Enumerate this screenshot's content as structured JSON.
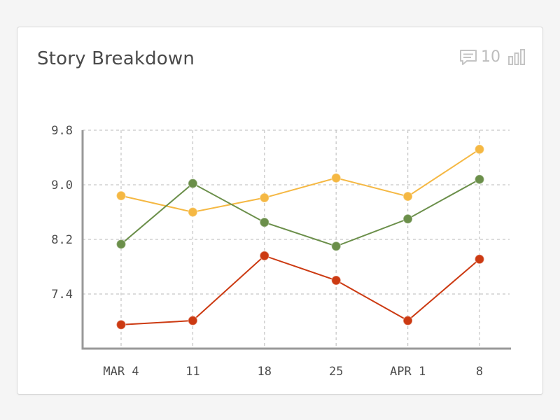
{
  "card": {
    "title": "Story Breakdown",
    "comment_icon": "comment-icon",
    "comment_count": "10",
    "chart_toggle_icon": "bar-chart-icon"
  },
  "colors": {
    "orange": "#f5b843",
    "green": "#6b8f4a",
    "red": "#cc3a12",
    "axis": "#999999",
    "grid": "#c8c8c8"
  },
  "chart_data": {
    "type": "line",
    "title": "",
    "xlabel": "",
    "ylabel": "",
    "categories": [
      "MAR 4",
      "11",
      "18",
      "25",
      "APR 1",
      "8"
    ],
    "yticks": [
      "9.8",
      "9.0",
      "8.2",
      "7.4"
    ],
    "ylim": [
      6.6,
      9.8
    ],
    "grid": true,
    "series": [
      {
        "color": "#f5b843",
        "values": [
          8.84,
          8.6,
          8.81,
          9.1,
          8.83,
          9.52
        ]
      },
      {
        "color": "#6b8f4a",
        "values": [
          8.13,
          9.02,
          8.45,
          8.1,
          8.5,
          9.08
        ]
      },
      {
        "color": "#cc3a12",
        "values": [
          6.95,
          7.01,
          7.96,
          7.6,
          7.01,
          7.91
        ]
      }
    ]
  }
}
